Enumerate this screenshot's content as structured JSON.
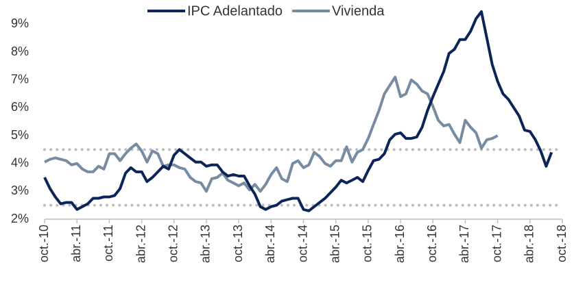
{
  "chart_data": {
    "type": "line",
    "categories": [
      "oct.-10",
      null,
      null,
      null,
      null,
      null,
      "abr.-11",
      null,
      null,
      null,
      null,
      null,
      "oct.-11",
      null,
      null,
      null,
      null,
      null,
      "abr.-12",
      null,
      null,
      null,
      null,
      null,
      "oct.-12",
      null,
      null,
      null,
      null,
      null,
      "abr.-13",
      null,
      null,
      null,
      null,
      null,
      "oct.-13",
      null,
      null,
      null,
      null,
      null,
      "abr.-14",
      null,
      null,
      null,
      null,
      null,
      "oct.-14",
      null,
      null,
      null,
      null,
      null,
      "abr.-15",
      null,
      null,
      null,
      null,
      null,
      "oct.-15",
      null,
      null,
      null,
      null,
      null,
      "abr.-16",
      null,
      null,
      null,
      null,
      null,
      "oct.-16",
      null,
      null,
      null,
      null,
      null,
      "abr.-17",
      null,
      null,
      null,
      null,
      null,
      "oct.-17",
      null,
      null,
      null,
      null,
      null,
      "abr.-18",
      null,
      null,
      null,
      null,
      null,
      "oct.-18"
    ],
    "series": [
      {
        "name": "IPC Adelantado",
        "color": "#0b2559",
        "values": [
          3.5,
          3.1,
          2.8,
          2.55,
          2.6,
          2.6,
          2.35,
          2.45,
          2.55,
          2.75,
          2.75,
          2.8,
          2.8,
          2.85,
          3.1,
          3.65,
          3.85,
          3.7,
          3.7,
          3.35,
          3.5,
          3.7,
          3.9,
          3.8,
          4.3,
          4.5,
          4.35,
          4.2,
          4.05,
          4.05,
          3.9,
          3.95,
          3.95,
          3.7,
          3.55,
          3.6,
          3.55,
          3.55,
          3.2,
          2.9,
          2.45,
          2.35,
          2.45,
          2.5,
          2.65,
          2.7,
          2.75,
          2.75,
          2.35,
          2.3,
          2.45,
          2.6,
          2.75,
          2.95,
          3.15,
          3.4,
          3.3,
          3.4,
          3.5,
          3.35,
          3.75,
          4.1,
          4.15,
          4.35,
          4.85,
          5.05,
          5.1,
          4.9,
          4.9,
          4.95,
          5.3,
          5.9,
          6.4,
          6.85,
          7.3,
          7.95,
          8.1,
          8.45,
          8.45,
          8.75,
          9.2,
          9.45,
          8.5,
          7.55,
          6.95,
          6.5,
          6.3,
          6.0,
          5.7,
          5.2,
          5.15,
          4.85,
          4.45,
          3.9,
          4.4,
          null,
          null
        ]
      },
      {
        "name": "Vivienda",
        "color": "#778ca0",
        "values": [
          4.05,
          4.15,
          4.2,
          4.15,
          4.1,
          3.95,
          4.0,
          3.8,
          3.7,
          3.7,
          3.9,
          3.8,
          4.35,
          4.35,
          4.1,
          4.35,
          4.55,
          4.7,
          4.45,
          4.05,
          4.45,
          4.35,
          3.9,
          3.95,
          3.95,
          3.85,
          3.8,
          3.5,
          3.35,
          3.3,
          3.0,
          3.45,
          3.5,
          3.65,
          3.4,
          3.3,
          3.2,
          3.3,
          3.05,
          3.25,
          3.0,
          3.25,
          3.6,
          3.85,
          3.45,
          3.35,
          4.0,
          4.1,
          3.85,
          3.95,
          4.4,
          4.25,
          4.0,
          3.9,
          4.1,
          4.1,
          4.6,
          4.05,
          4.4,
          4.5,
          4.9,
          5.4,
          5.9,
          6.5,
          6.8,
          7.1,
          6.4,
          6.5,
          7.0,
          6.85,
          6.6,
          6.5,
          6.05,
          5.55,
          5.35,
          5.4,
          5.05,
          4.75,
          5.55,
          5.3,
          5.1,
          4.55,
          4.85,
          4.9,
          5.0,
          null,
          null,
          null,
          null,
          null,
          null,
          null,
          null,
          null,
          null,
          null,
          null
        ]
      }
    ],
    "ylim": [
      2,
      9.5
    ],
    "yticks": [
      {
        "value": 2,
        "label": "2%"
      },
      {
        "value": 3,
        "label": "3%"
      },
      {
        "value": 4,
        "label": "4%"
      },
      {
        "value": 5,
        "label": "5%"
      },
      {
        "value": 6,
        "label": "6%"
      },
      {
        "value": 7,
        "label": "7%"
      },
      {
        "value": 8,
        "label": "8%"
      },
      {
        "value": 9,
        "label": "9%"
      }
    ],
    "reference_lines": [
      2.5,
      4.5
    ],
    "legend": "top"
  }
}
